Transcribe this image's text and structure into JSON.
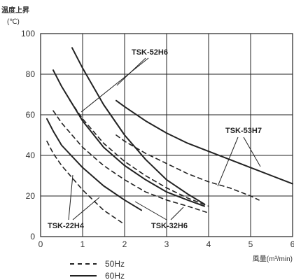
{
  "chart_data": {
    "type": "line",
    "ylabel": "温度上昇",
    "yunit": "(℃)",
    "xlabel": "風量(m³/min)",
    "xlim": [
      0,
      6
    ],
    "ylim": [
      0,
      100
    ],
    "x_ticks": [
      "0",
      "1",
      "2",
      "3",
      "4",
      "5",
      "6"
    ],
    "y_ticks": [
      "0",
      "20",
      "40",
      "60",
      "80",
      "100"
    ],
    "grid": true,
    "legend": [
      {
        "label": "50Hz",
        "style": "dashed"
      },
      {
        "label": "60Hz",
        "style": "solid"
      }
    ],
    "series": [
      {
        "model": "TSK-52H6",
        "freq": "60Hz",
        "x": [
          0.75,
          1.0,
          1.5,
          2.0,
          2.5,
          3.0,
          3.5,
          3.9
        ],
        "y": [
          93,
          83,
          65,
          50,
          38,
          28,
          21,
          16
        ]
      },
      {
        "model": "TSK-52H6",
        "freq": "50Hz",
        "x": [
          0.7,
          1.0,
          1.5,
          2.0,
          2.5,
          3.0,
          3.5,
          4.0
        ],
        "y": [
          67,
          58,
          46,
          37,
          30,
          24,
          19,
          15
        ]
      },
      {
        "model": "TSK-53H7",
        "freq": "60Hz",
        "x": [
          1.8,
          2.0,
          2.5,
          3.0,
          3.5,
          4.0,
          4.5,
          5.0,
          5.5,
          6.0
        ],
        "y": [
          67,
          64,
          57,
          51,
          46,
          42,
          38,
          34,
          30,
          26
        ]
      },
      {
        "model": "TSK-53H7",
        "freq": "50Hz",
        "x": [
          1.8,
          2.0,
          2.5,
          3.0,
          3.5,
          4.0,
          4.5,
          5.0,
          5.2
        ],
        "y": [
          50,
          47,
          41,
          36,
          31,
          27,
          24,
          20,
          18
        ]
      },
      {
        "model": "TSK-32H6",
        "freq": "60Hz",
        "x": [
          0.3,
          0.5,
          1.0,
          1.5,
          2.0,
          2.5,
          3.0,
          3.5,
          3.9
        ],
        "y": [
          82,
          74,
          57,
          44,
          35,
          28,
          22,
          18,
          15
        ]
      },
      {
        "model": "TSK-32H6",
        "freq": "50Hz",
        "x": [
          0.3,
          0.5,
          1.0,
          1.5,
          2.0,
          2.5,
          3.0,
          3.5,
          3.95
        ],
        "y": [
          62,
          56,
          44,
          35,
          28,
          22,
          18,
          15,
          12
        ]
      },
      {
        "model": "TSK-22H4",
        "freq": "60Hz",
        "x": [
          0.15,
          0.3,
          0.5,
          1.0,
          1.5,
          2.0,
          2.4
        ],
        "y": [
          58,
          52,
          45,
          34,
          25,
          18,
          13
        ]
      },
      {
        "model": "TSK-22H4",
        "freq": "50Hz",
        "x": [
          0.15,
          0.3,
          0.5,
          1.0,
          1.5,
          2.0
        ],
        "y": [
          47,
          41,
          35,
          23,
          13,
          6
        ]
      }
    ],
    "annotations": [
      "TSK-52H6",
      "TSK-53H7",
      "TSK-32H6",
      "TSK-22H4"
    ]
  }
}
